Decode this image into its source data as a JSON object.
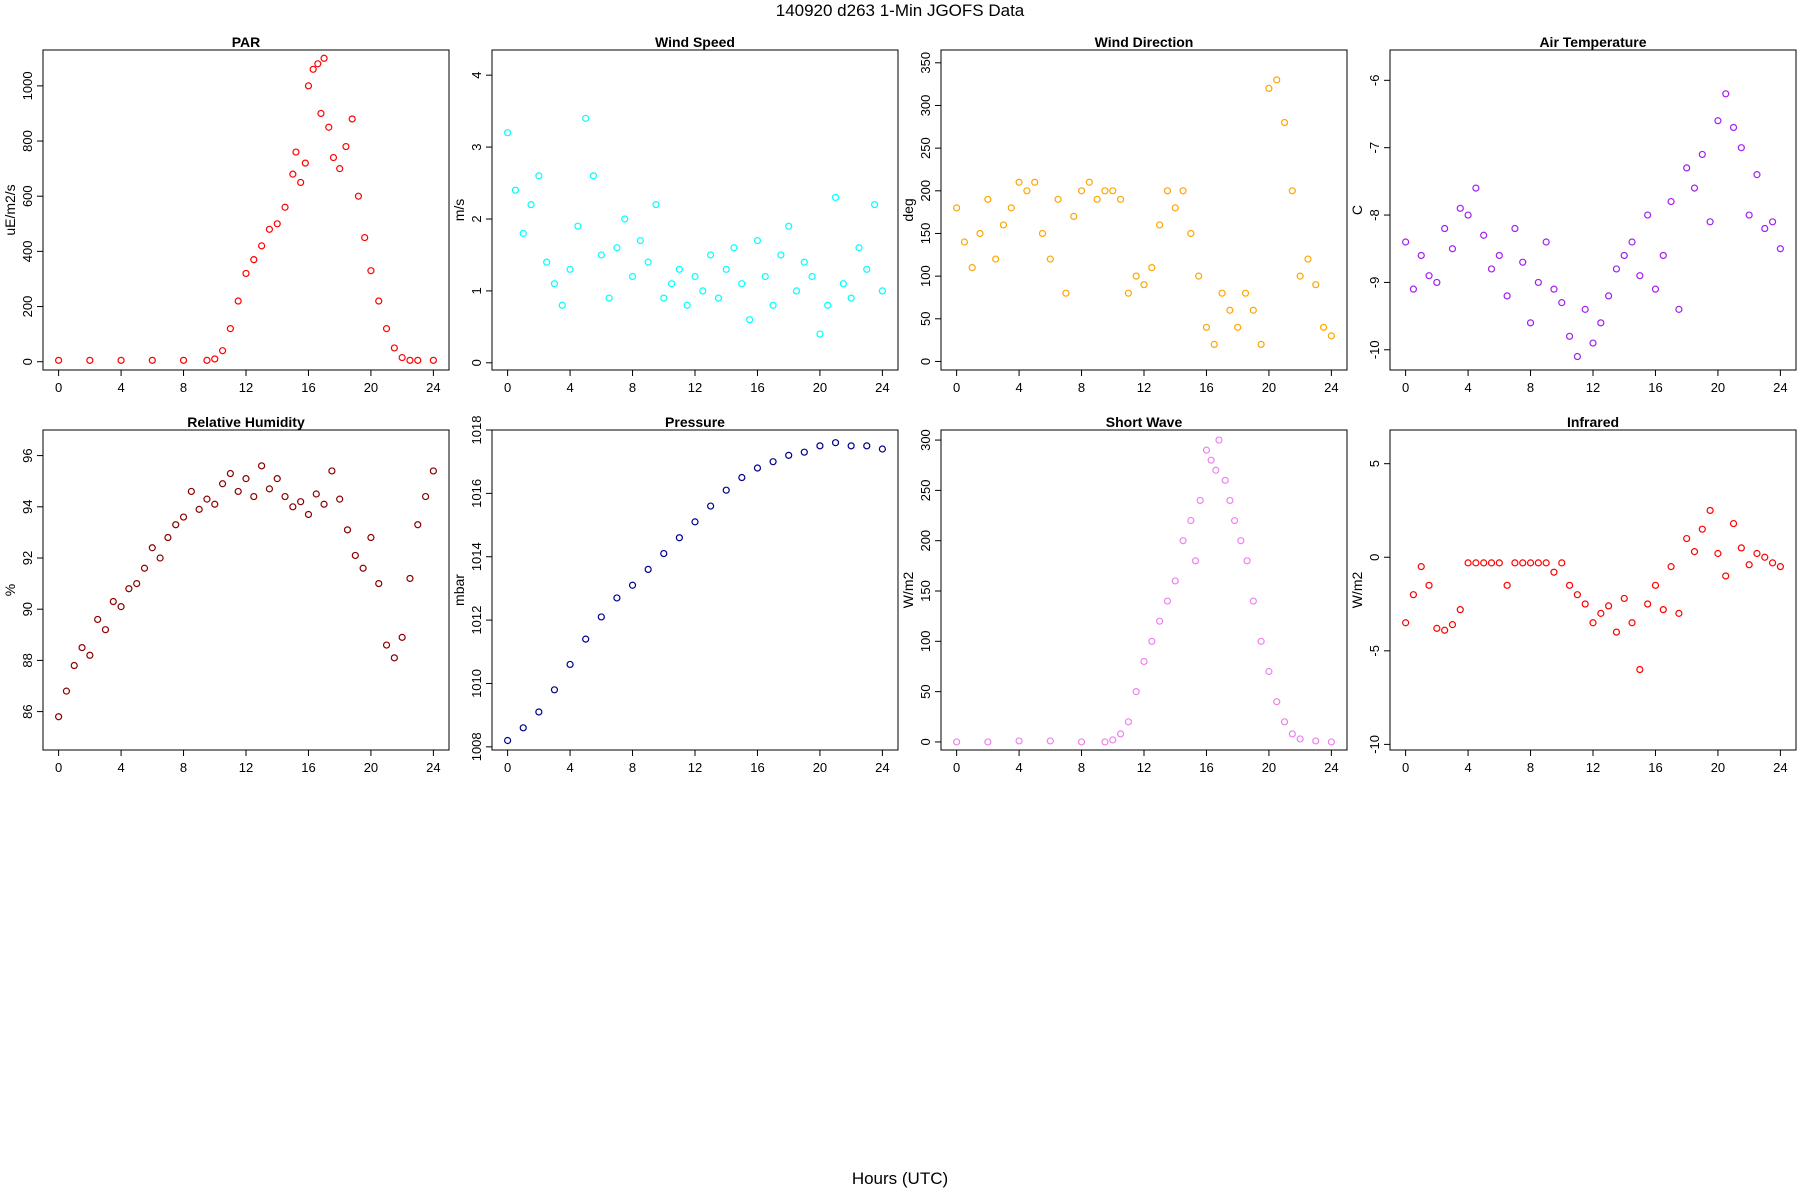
{
  "title": "140920   d263   1-Min  JGOFS Data",
  "x_axis_label": "Hours (UTC)",
  "chart_data": [
    {
      "type": "scatter",
      "title": "PAR",
      "ylabel": "uE/m2/s",
      "color": "#ff0000",
      "xlim": [
        -1,
        25
      ],
      "ylim": [
        -30,
        1130
      ],
      "x_ticks": [
        0,
        4,
        8,
        12,
        16,
        20,
        24
      ],
      "y_ticks": [
        0,
        200,
        400,
        600,
        800,
        1000
      ],
      "x": [
        0,
        2,
        4,
        6,
        8,
        9.5,
        10,
        10.5,
        11,
        11.5,
        12,
        12.5,
        13,
        13.5,
        14,
        14.5,
        15,
        15.2,
        15.5,
        15.8,
        16,
        16.3,
        16.6,
        16.8,
        17,
        17.3,
        17.6,
        18,
        18.4,
        18.8,
        19.2,
        19.6,
        20,
        20.5,
        21,
        21.5,
        22,
        22.5,
        23,
        24
      ],
      "y": [
        5,
        5,
        5,
        5,
        5,
        5,
        10,
        40,
        120,
        220,
        320,
        370,
        420,
        480,
        500,
        560,
        680,
        760,
        650,
        720,
        1000,
        1060,
        1080,
        900,
        1100,
        850,
        740,
        700,
        780,
        880,
        600,
        450,
        330,
        220,
        120,
        50,
        15,
        5,
        5,
        5
      ]
    },
    {
      "type": "scatter",
      "title": "Wind Speed",
      "ylabel": "m/s",
      "color": "#00ffff",
      "xlim": [
        -1,
        25
      ],
      "ylim": [
        -0.1,
        4.35
      ],
      "x_ticks": [
        0,
        4,
        8,
        12,
        16,
        20,
        24
      ],
      "y_ticks": [
        0,
        1,
        2,
        3,
        4
      ],
      "x": [
        0,
        0.5,
        1,
        1.5,
        2,
        2.5,
        3,
        3.5,
        4,
        4.5,
        5,
        5.5,
        6,
        6.5,
        7,
        7.5,
        8,
        8.5,
        9,
        9.5,
        10,
        10.5,
        11,
        11.5,
        12,
        12.5,
        13,
        13.5,
        14,
        14.5,
        15,
        15.5,
        16,
        16.5,
        17,
        17.5,
        18,
        18.5,
        19,
        19.5,
        20,
        20.5,
        21,
        21.5,
        22,
        22.5,
        23,
        23.5,
        24
      ],
      "y": [
        3.2,
        2.4,
        1.8,
        2.2,
        2.6,
        1.4,
        1.1,
        0.8,
        1.3,
        1.9,
        3.4,
        2.6,
        1.5,
        0.9,
        1.6,
        2.0,
        1.2,
        1.7,
        1.4,
        2.2,
        0.9,
        1.1,
        1.3,
        0.8,
        1.2,
        1.0,
        1.5,
        0.9,
        1.3,
        1.6,
        1.1,
        0.6,
        1.7,
        1.2,
        0.8,
        1.5,
        1.9,
        1.0,
        1.4,
        1.2,
        0.4,
        0.8,
        2.3,
        1.1,
        0.9,
        1.6,
        1.3,
        2.2,
        1.0
      ]
    },
    {
      "type": "scatter",
      "title": "Wind Direction",
      "ylabel": "deg",
      "color": "#ffa500",
      "xlim": [
        -1,
        25
      ],
      "ylim": [
        -10,
        365
      ],
      "x_ticks": [
        0,
        4,
        8,
        12,
        16,
        20,
        24
      ],
      "y_ticks": [
        0,
        50,
        100,
        150,
        200,
        250,
        300,
        350
      ],
      "x": [
        0,
        0.5,
        1,
        1.5,
        2,
        2.5,
        3,
        3.5,
        4,
        4.5,
        5,
        5.5,
        6,
        6.5,
        7,
        7.5,
        8,
        8.5,
        9,
        9.5,
        10,
        10.5,
        11,
        11.5,
        12,
        12.5,
        13,
        13.5,
        14,
        14.5,
        15,
        15.5,
        16,
        16.5,
        17,
        17.5,
        18,
        18.5,
        19,
        19.5,
        20,
        20.5,
        21,
        21.5,
        22,
        22.5,
        23,
        23.5,
        24
      ],
      "y": [
        180,
        140,
        110,
        150,
        190,
        120,
        160,
        180,
        210,
        200,
        210,
        150,
        120,
        190,
        80,
        170,
        200,
        210,
        190,
        200,
        200,
        190,
        80,
        100,
        90,
        110,
        160,
        200,
        180,
        200,
        150,
        100,
        40,
        20,
        80,
        60,
        40,
        80,
        60,
        20,
        320,
        330,
        280,
        200,
        100,
        120,
        90,
        40,
        30
      ]
    },
    {
      "type": "scatter",
      "title": "Air Temperature",
      "ylabel": "C",
      "color": "#a020f0",
      "xlim": [
        -1,
        25
      ],
      "ylim": [
        -10.3,
        -5.55
      ],
      "x_ticks": [
        0,
        4,
        8,
        12,
        16,
        20,
        24
      ],
      "y_ticks": [
        -10,
        -9,
        -8,
        -7,
        -6
      ],
      "x": [
        0,
        0.5,
        1,
        1.5,
        2,
        2.5,
        3,
        3.5,
        4,
        4.5,
        5,
        5.5,
        6,
        6.5,
        7,
        7.5,
        8,
        8.5,
        9,
        9.5,
        10,
        10.5,
        11,
        11.5,
        12,
        12.5,
        13,
        13.5,
        14,
        14.5,
        15,
        15.5,
        16,
        16.5,
        17,
        17.5,
        18,
        18.5,
        19,
        19.5,
        20,
        20.5,
        21,
        21.5,
        22,
        22.5,
        23,
        23.5,
        24
      ],
      "y": [
        -8.4,
        -9.1,
        -8.6,
        -8.9,
        -9.0,
        -8.2,
        -8.5,
        -7.9,
        -8.0,
        -7.6,
        -8.3,
        -8.8,
        -8.6,
        -9.2,
        -8.2,
        -8.7,
        -9.6,
        -9.0,
        -8.4,
        -9.1,
        -9.3,
        -9.8,
        -10.1,
        -9.4,
        -9.9,
        -9.6,
        -9.2,
        -8.8,
        -8.6,
        -8.4,
        -8.9,
        -8.0,
        -9.1,
        -8.6,
        -7.8,
        -9.4,
        -7.3,
        -7.6,
        -7.1,
        -8.1,
        -6.6,
        -6.2,
        -6.7,
        -7.0,
        -8.0,
        -7.4,
        -8.2,
        -8.1,
        -8.5
      ]
    },
    {
      "type": "scatter",
      "title": "Relative Humidity",
      "ylabel": "%",
      "color": "#8b0000",
      "xlim": [
        -1,
        25
      ],
      "ylim": [
        84.5,
        97.0
      ],
      "x_ticks": [
        0,
        4,
        8,
        12,
        16,
        20,
        24
      ],
      "y_ticks": [
        86,
        88,
        90,
        92,
        94,
        96
      ],
      "x": [
        0,
        0.5,
        1,
        1.5,
        2,
        2.5,
        3,
        3.5,
        4,
        4.5,
        5,
        5.5,
        6,
        6.5,
        7,
        7.5,
        8,
        8.5,
        9,
        9.5,
        10,
        10.5,
        11,
        11.5,
        12,
        12.5,
        13,
        13.5,
        14,
        14.5,
        15,
        15.5,
        16,
        16.5,
        17,
        17.5,
        18,
        18.5,
        19,
        19.5,
        20,
        20.5,
        21,
        21.5,
        22,
        22.5,
        23,
        23.5,
        24
      ],
      "y": [
        85.8,
        86.8,
        87.8,
        88.5,
        88.2,
        89.6,
        89.2,
        90.3,
        90.1,
        90.8,
        91.0,
        91.6,
        92.4,
        92.0,
        92.8,
        93.3,
        93.6,
        94.6,
        93.9,
        94.3,
        94.1,
        94.9,
        95.3,
        94.6,
        95.1,
        94.4,
        95.6,
        94.7,
        95.1,
        94.4,
        94.0,
        94.2,
        93.7,
        94.5,
        94.1,
        95.4,
        94.3,
        93.1,
        92.1,
        91.6,
        92.8,
        91.0,
        88.6,
        88.1,
        88.9,
        91.2,
        93.3,
        94.4,
        95.4
      ]
    },
    {
      "type": "scatter",
      "title": "Pressure",
      "ylabel": "mbar",
      "color": "#00008b",
      "xlim": [
        -1,
        25
      ],
      "ylim": [
        1007.9,
        1018.0
      ],
      "x_ticks": [
        0,
        4,
        8,
        12,
        16,
        20,
        24
      ],
      "y_ticks": [
        1008,
        1010,
        1012,
        1014,
        1016,
        1018
      ],
      "x": [
        0,
        1,
        2,
        3,
        4,
        5,
        6,
        7,
        8,
        9,
        10,
        11,
        12,
        13,
        14,
        15,
        16,
        17,
        18,
        19,
        20,
        21,
        22,
        23,
        24
      ],
      "y": [
        1008.2,
        1008.6,
        1009.1,
        1009.8,
        1010.6,
        1011.4,
        1012.1,
        1012.7,
        1013.1,
        1013.6,
        1014.1,
        1014.6,
        1015.1,
        1015.6,
        1016.1,
        1016.5,
        1016.8,
        1017.0,
        1017.2,
        1017.3,
        1017.5,
        1017.6,
        1017.5,
        1017.5,
        1017.4
      ]
    },
    {
      "type": "scatter",
      "title": "Short Wave",
      "ylabel": "W/m2",
      "color": "#ee82ee",
      "xlim": [
        -1,
        25
      ],
      "ylim": [
        -8,
        310
      ],
      "x_ticks": [
        0,
        4,
        8,
        12,
        16,
        20,
        24
      ],
      "y_ticks": [
        0,
        50,
        100,
        150,
        200,
        250,
        300
      ],
      "x": [
        0,
        2,
        4,
        6,
        8,
        9.5,
        10,
        10.5,
        11,
        11.5,
        12,
        12.5,
        13,
        13.5,
        14,
        14.5,
        15,
        15.3,
        15.6,
        16,
        16.3,
        16.6,
        16.8,
        17.2,
        17.5,
        17.8,
        18.2,
        18.6,
        19,
        19.5,
        20,
        20.5,
        21,
        21.5,
        22,
        23,
        24
      ],
      "y": [
        0,
        0,
        1,
        1,
        0,
        0,
        2,
        8,
        20,
        50,
        80,
        100,
        120,
        140,
        160,
        200,
        220,
        180,
        240,
        290,
        280,
        270,
        300,
        260,
        240,
        220,
        200,
        180,
        140,
        100,
        70,
        40,
        20,
        8,
        3,
        1,
        0
      ]
    },
    {
      "type": "scatter",
      "title": "Infrared",
      "ylabel": "W/m2",
      "color": "#ff0000",
      "xlim": [
        -1,
        25
      ],
      "ylim": [
        -10.3,
        6.8
      ],
      "x_ticks": [
        0,
        4,
        8,
        12,
        16,
        20,
        24
      ],
      "y_ticks": [
        -10,
        -5,
        0,
        5
      ],
      "x": [
        0,
        0.5,
        1,
        1.5,
        2,
        2.5,
        3,
        3.5,
        4,
        4.5,
        5,
        5.5,
        6,
        6.5,
        7,
        7.5,
        8,
        8.5,
        9,
        9.5,
        10,
        10.5,
        11,
        11.5,
        12,
        12.5,
        13,
        13.5,
        14,
        14.5,
        15,
        15.5,
        16,
        16.5,
        17,
        17.5,
        18,
        18.5,
        19,
        19.5,
        20,
        20.5,
        21,
        21.5,
        22,
        22.5,
        23,
        23.5,
        24
      ],
      "y": [
        -3.5,
        -2.0,
        -0.5,
        -1.5,
        -3.8,
        -3.9,
        -3.6,
        -2.8,
        -0.3,
        -0.3,
        -0.3,
        -0.3,
        -0.3,
        -1.5,
        -0.3,
        -0.3,
        -0.3,
        -0.3,
        -0.3,
        -0.8,
        -0.3,
        -1.5,
        -2.0,
        -2.5,
        -3.5,
        -3.0,
        -2.6,
        -4.0,
        -2.2,
        -3.5,
        -6.0,
        -2.5,
        -1.5,
        -2.8,
        -0.5,
        -3.0,
        1.0,
        0.3,
        1.5,
        2.5,
        0.2,
        -1.0,
        1.8,
        0.5,
        -0.4,
        0.2,
        0.0,
        -0.3,
        -0.5
      ]
    }
  ]
}
